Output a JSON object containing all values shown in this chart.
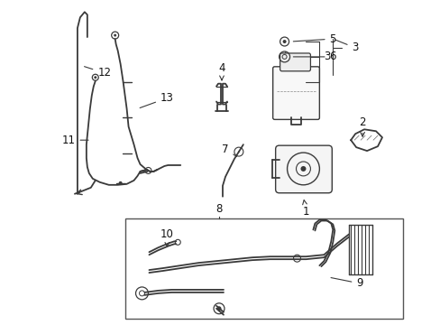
{
  "bg_color": "#ffffff",
  "line_color": "#3a3a3a",
  "label_color": "#111111",
  "fig_width": 4.89,
  "fig_height": 3.6,
  "dpi": 100
}
